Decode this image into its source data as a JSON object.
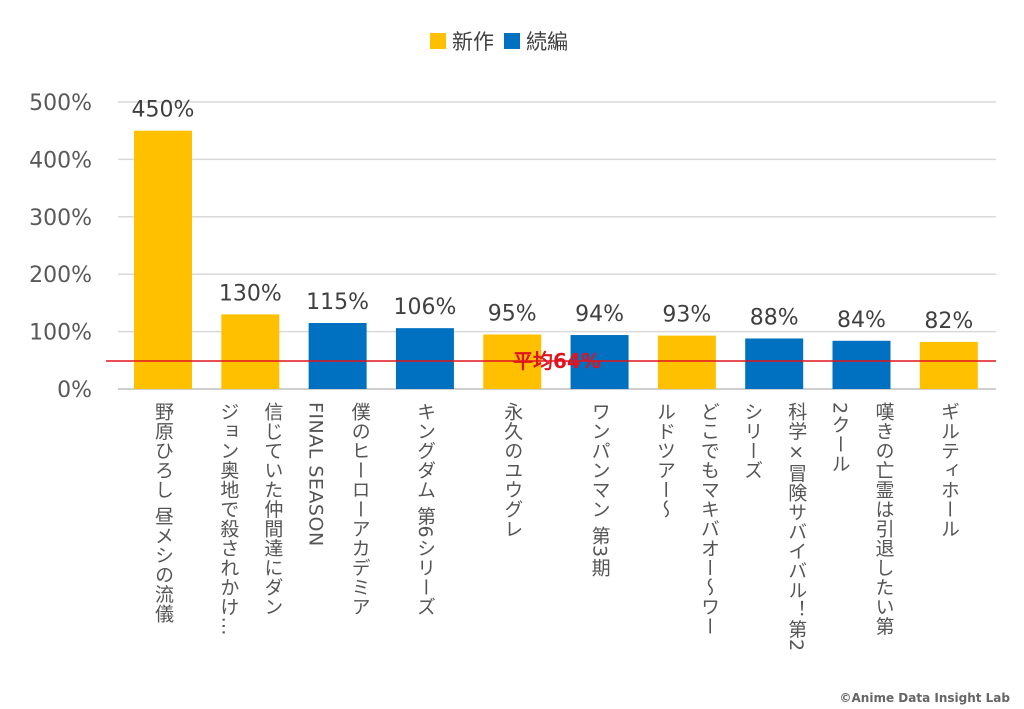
{
  "chart_data": {
    "type": "bar",
    "legend": [
      {
        "name": "新作",
        "color": "#FFC000"
      },
      {
        "name": "続編",
        "color": "#0070C0"
      }
    ],
    "legend_position": "top",
    "categories": [
      [
        "野原ひろし 昼メシの流儀"
      ],
      [
        "信じていた仲間達にダン",
        "ジョン奥地で殺されかけ…"
      ],
      [
        "僕のヒーローアカデミア",
        "FINAL SEASON"
      ],
      [
        "キングダム 第6シリーズ"
      ],
      [
        "永久のユウグレ"
      ],
      [
        "ワンパンマン 第3期"
      ],
      [
        "どこでもマキバオー～ワー",
        "ルドツアー～"
      ],
      [
        "科学×冒険サバイバル！第2",
        "シリーズ"
      ],
      [
        "嘆きの亡霊は引退したい第",
        "2クール"
      ],
      [
        "ギルティホール"
      ]
    ],
    "values": [
      450,
      130,
      115,
      106,
      95,
      94,
      93,
      88,
      84,
      82
    ],
    "data_labels": [
      "450%",
      "130%",
      "115%",
      "106%",
      "95%",
      "94%",
      "93%",
      "88%",
      "84%",
      "82%"
    ],
    "series_type": [
      "新作",
      "新作",
      "続編",
      "続編",
      "新作",
      "続編",
      "新作",
      "続編",
      "続編",
      "新作"
    ],
    "yticks": [
      "0%",
      "100%",
      "200%",
      "300%",
      "400%",
      "500%"
    ],
    "ylim": [
      0,
      500
    ],
    "grid": true,
    "average": {
      "label": "平均64%",
      "value": 64,
      "color": "#E0141E"
    }
  },
  "copyright": "©Anime Data Insight Lab"
}
